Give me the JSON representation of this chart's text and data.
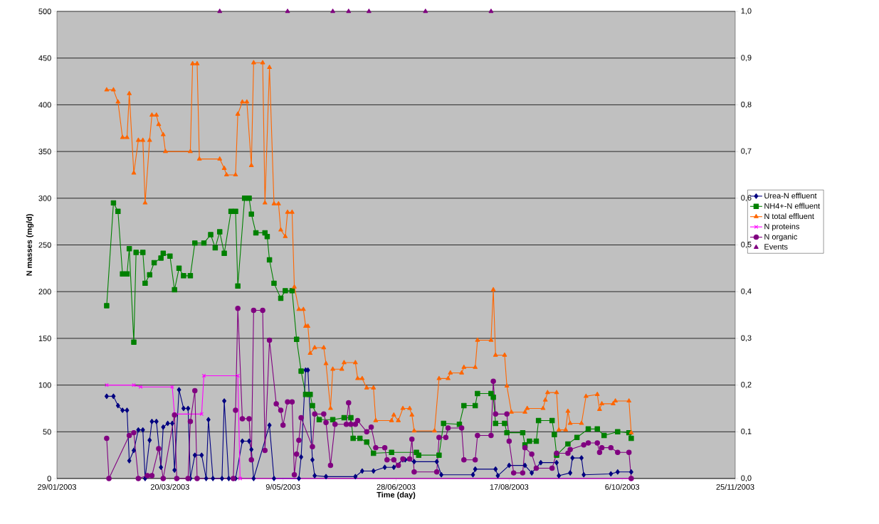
{
  "chart_data": {
    "type": "line",
    "xlabel": "Time (day)",
    "ylabel": "N masses (mg/d)",
    "xlim": [
      "2003-01-29",
      "2003-11-25"
    ],
    "xticks": [
      {
        "value": "2003-01-29",
        "label": "29/01/2003"
      },
      {
        "value": "2003-03-20",
        "label": "20/03/2003"
      },
      {
        "value": "2003-05-09",
        "label": "9/05/2003"
      },
      {
        "value": "2003-06-28",
        "label": "28/06/2003"
      },
      {
        "value": "2003-08-17",
        "label": "17/08/2003"
      },
      {
        "value": "2003-10-06",
        "label": "6/10/2003"
      },
      {
        "value": "2003-11-25",
        "label": "25/11/2003"
      }
    ],
    "ylim": [
      0,
      500
    ],
    "yticks": [
      0,
      50,
      100,
      150,
      200,
      250,
      300,
      350,
      400,
      450,
      500
    ],
    "y2lim": [
      0,
      1
    ],
    "y2ticks": [
      {
        "value": 0,
        "label": "0,0"
      },
      {
        "value": 0.1,
        "label": "0,1"
      },
      {
        "value": 0.2,
        "label": "0,2"
      },
      {
        "value": 0.3,
        "label": "0,3"
      },
      {
        "value": 0.4,
        "label": "0,4"
      },
      {
        "value": 0.5,
        "label": "0,5"
      },
      {
        "value": 0.6,
        "label": "0,6"
      },
      {
        "value": 0.7,
        "label": "0,7"
      },
      {
        "value": 0.8,
        "label": "0,8"
      },
      {
        "value": 0.9,
        "label": "0,9"
      },
      {
        "value": 1,
        "label": "1,0"
      }
    ],
    "grid": "y",
    "legend": "right",
    "line_style": "solid",
    "series": [
      {
        "name": "Urea-N effluent",
        "color": "#000080",
        "marker": "diamond",
        "x": [
          "2003-02-20",
          "2003-02-23",
          "2003-02-25",
          "2003-02-27",
          "2003-03-01",
          "2003-03-02",
          "2003-03-04",
          "2003-03-06",
          "2003-03-08",
          "2003-03-09",
          "2003-03-11",
          "2003-03-12",
          "2003-03-14",
          "2003-03-16",
          "2003-03-17",
          "2003-03-19",
          "2003-03-21",
          "2003-03-22",
          "2003-03-24",
          "2003-03-26",
          "2003-03-28",
          "2003-03-29",
          "2003-03-31",
          "2003-04-03",
          "2003-04-05",
          "2003-04-06",
          "2003-04-08",
          "2003-04-12",
          "2003-04-13",
          "2003-04-15",
          "2003-04-18",
          "2003-04-21",
          "2003-04-24",
          "2003-04-25",
          "2003-04-26",
          "2003-05-01",
          "2003-05-03",
          "2003-05-05",
          "2003-05-16",
          "2003-05-17",
          "2003-05-19",
          "2003-05-20",
          "2003-05-22",
          "2003-05-23",
          "2003-05-28",
          "2003-06-10",
          "2003-06-13",
          "2003-06-18",
          "2003-06-23",
          "2003-06-27",
          "2003-07-01",
          "2003-07-02",
          "2003-07-06",
          "2003-07-16",
          "2003-07-18",
          "2003-08-01",
          "2003-08-02",
          "2003-08-11",
          "2003-08-12",
          "2003-08-17",
          "2003-08-24",
          "2003-08-27",
          "2003-08-31",
          "2003-09-07",
          "2003-09-08",
          "2003-09-13",
          "2003-09-14",
          "2003-09-18",
          "2003-09-19",
          "2003-10-01",
          "2003-10-04",
          "2003-10-10"
        ],
        "values": [
          88,
          88,
          78,
          73,
          73,
          19,
          30,
          52,
          52,
          0,
          41,
          61,
          61,
          12,
          55,
          59,
          59,
          9,
          95,
          75,
          75,
          0,
          25,
          25,
          0,
          63,
          0,
          0,
          83,
          0,
          0,
          40,
          40,
          31,
          0,
          null,
          57,
          0,
          0,
          23,
          116,
          116,
          20,
          3,
          2,
          2,
          8,
          8,
          12,
          12,
          20,
          20,
          18,
          18,
          4,
          4,
          10,
          10,
          3,
          14,
          14,
          6,
          17,
          17,
          3,
          6,
          22,
          22,
          4,
          5,
          7,
          7
        ]
      },
      {
        "name": "NH4+-N effluent",
        "color": "#008000",
        "marker": "square",
        "x": [
          "2003-02-20",
          "2003-02-23",
          "2003-02-25",
          "2003-02-27",
          "2003-03-01",
          "2003-03-02",
          "2003-03-04",
          "2003-03-05",
          "2003-03-08",
          "2003-03-09",
          "2003-03-11",
          "2003-03-13",
          "2003-03-16",
          "2003-03-17",
          "2003-03-20",
          "2003-03-22",
          "2003-03-24",
          "2003-03-26",
          "2003-03-29",
          "2003-03-31",
          "2003-04-04",
          "2003-04-07",
          "2003-04-09",
          "2003-04-11",
          "2003-04-13",
          "2003-04-16",
          "2003-04-18",
          "2003-04-19",
          "2003-04-22",
          "2003-04-24",
          "2003-04-25",
          "2003-04-27",
          "2003-05-01",
          "2003-05-02",
          "2003-05-03",
          "2003-05-05",
          "2003-05-08",
          "2003-05-10",
          "2003-05-13",
          "2003-05-15",
          "2003-05-17",
          "2003-05-19",
          "2003-05-21",
          "2003-05-22",
          "2003-05-25",
          "2003-05-31",
          "2003-06-05",
          "2003-06-08",
          "2003-06-09",
          "2003-06-12",
          "2003-06-15",
          "2003-06-18",
          "2003-06-26",
          "2003-07-07",
          "2003-07-08",
          "2003-07-17",
          "2003-07-19",
          "2003-07-26",
          "2003-07-28",
          "2003-08-02",
          "2003-08-03",
          "2003-08-09",
          "2003-08-10",
          "2003-08-11",
          "2003-08-15",
          "2003-08-16",
          "2003-08-23",
          "2003-08-24",
          "2003-08-26",
          "2003-08-29",
          "2003-08-30",
          "2003-09-05",
          "2003-09-06",
          "2003-09-07",
          "2003-09-12",
          "2003-09-16",
          "2003-09-21",
          "2003-09-25",
          "2003-09-28",
          "2003-10-04",
          "2003-10-09",
          "2003-10-10"
        ],
        "values": [
          185,
          295,
          286,
          219,
          219,
          246,
          146,
          242,
          242,
          209,
          218,
          231,
          236,
          241,
          238,
          202,
          225,
          217,
          217,
          252,
          252,
          261,
          247,
          264,
          241,
          286,
          286,
          206,
          300,
          300,
          283,
          263,
          263,
          259,
          234,
          209,
          193,
          201,
          201,
          149,
          115,
          90,
          90,
          78,
          63,
          63,
          65,
          65,
          43,
          43,
          39,
          27,
          28,
          28,
          25,
          25,
          59,
          58,
          78,
          78,
          91,
          91,
          87,
          59,
          59,
          49,
          49,
          36,
          40,
          40,
          62,
          62,
          47,
          25,
          37,
          44,
          53,
          53,
          46,
          50,
          49,
          43
        ]
      },
      {
        "name": "N total effluent",
        "color": "#ff6600",
        "marker": "triangle",
        "x": [
          "2003-02-20",
          "2003-02-23",
          "2003-02-25",
          "2003-02-27",
          "2003-03-01",
          "2003-03-02",
          "2003-03-04",
          "2003-03-06",
          "2003-03-08",
          "2003-03-09",
          "2003-03-11",
          "2003-03-12",
          "2003-03-14",
          "2003-03-15",
          "2003-03-17",
          "2003-03-18",
          "2003-03-29",
          "2003-03-30",
          "2003-04-01",
          "2003-04-02",
          "2003-04-11",
          "2003-04-13",
          "2003-04-14",
          "2003-04-18",
          "2003-04-19",
          "2003-04-21",
          "2003-04-23",
          "2003-04-25",
          "2003-04-26",
          "2003-04-30",
          "2003-05-01",
          "2003-05-03",
          "2003-05-05",
          "2003-05-07",
          "2003-05-08",
          "2003-05-10",
          "2003-05-11",
          "2003-05-13",
          "2003-05-14",
          "2003-05-16",
          "2003-05-18",
          "2003-05-19",
          "2003-05-20",
          "2003-05-21",
          "2003-05-23",
          "2003-05-27",
          "2003-05-28",
          "2003-05-30",
          "2003-05-31",
          "2003-06-04",
          "2003-06-05",
          "2003-06-10",
          "2003-06-11",
          "2003-06-13",
          "2003-06-15",
          "2003-06-18",
          "2003-06-19",
          "2003-06-26",
          "2003-06-27",
          "2003-06-29",
          "2003-07-01",
          "2003-07-04",
          "2003-07-05",
          "2003-07-06",
          "2003-07-15",
          "2003-07-17",
          "2003-07-21",
          "2003-07-22",
          "2003-07-27",
          "2003-07-28",
          "2003-08-02",
          "2003-08-03",
          "2003-08-09",
          "2003-08-10",
          "2003-08-11",
          "2003-08-15",
          "2003-08-16",
          "2003-08-18",
          "2003-08-24",
          "2003-08-25",
          "2003-09-01",
          "2003-09-02",
          "2003-09-03",
          "2003-09-07",
          "2003-09-08",
          "2003-09-11",
          "2003-09-12",
          "2003-09-13",
          "2003-09-18",
          "2003-09-20",
          "2003-09-25",
          "2003-09-26",
          "2003-09-27",
          "2003-10-02",
          "2003-10-03",
          "2003-10-09",
          "2003-10-10"
        ],
        "values": [
          416,
          416,
          403,
          365,
          365,
          412,
          327,
          362,
          362,
          295,
          362,
          389,
          389,
          379,
          368,
          350,
          350,
          444,
          444,
          342,
          342,
          332,
          325,
          325,
          390,
          403,
          403,
          335,
          445,
          445,
          295,
          440,
          294,
          294,
          266,
          259,
          285,
          285,
          205,
          181,
          181,
          163,
          163,
          134,
          140,
          140,
          123,
          75,
          117,
          117,
          124,
          124,
          107,
          107,
          97,
          97,
          62,
          62,
          68,
          62,
          75,
          75,
          68,
          51,
          51,
          107,
          107,
          113,
          113,
          119,
          119,
          148,
          148,
          202,
          132,
          132,
          99,
          71,
          71,
          75,
          75,
          84,
          92,
          92,
          52,
          52,
          72,
          59,
          59,
          88,
          90,
          74,
          80,
          80,
          83,
          83,
          49
        ]
      },
      {
        "name": "N proteins",
        "color": "#ff00ff",
        "marker": "cross",
        "x": [
          "2003-02-20",
          "2003-03-04",
          "2003-03-07",
          "2003-03-21",
          "2003-03-22",
          "2003-04-03",
          "2003-04-04",
          "2003-04-19",
          "2003-04-20",
          "2003-10-10"
        ],
        "values": [
          100,
          100,
          98,
          98,
          69,
          69,
          110,
          110,
          0,
          0
        ]
      },
      {
        "name": "N organic",
        "color": "#800080",
        "marker": "circle",
        "x": [
          "2003-02-20",
          "2003-02-21",
          "2003-03-02",
          "2003-03-04",
          "2003-03-06",
          "2003-03-10",
          "2003-03-12",
          "2003-03-15",
          "2003-03-17",
          "2003-03-22",
          "2003-03-23",
          "2003-03-28",
          "2003-03-29",
          "2003-03-31",
          "2003-04-01",
          "2003-04-17",
          "2003-04-18",
          "2003-04-19",
          "2003-04-21",
          "2003-04-24",
          "2003-04-25",
          "2003-04-26",
          "2003-04-30",
          "2003-05-01",
          "2003-05-03",
          "2003-05-06",
          "2003-05-08",
          "2003-05-09",
          "2003-05-11",
          "2003-05-13",
          "2003-05-14",
          "2003-05-15",
          "2003-05-16",
          "2003-05-17",
          "2003-05-22",
          "2003-05-23",
          "2003-05-27",
          "2003-05-28",
          "2003-05-30",
          "2003-06-01",
          "2003-06-06",
          "2003-06-07",
          "2003-06-08",
          "2003-06-10",
          "2003-06-11",
          "2003-06-15",
          "2003-06-17",
          "2003-06-19",
          "2003-06-23",
          "2003-06-24",
          "2003-06-27",
          "2003-06-29",
          "2003-07-01",
          "2003-07-04",
          "2003-07-05",
          "2003-07-06",
          "2003-07-16",
          "2003-07-17",
          "2003-07-20",
          "2003-07-21",
          "2003-07-27",
          "2003-07-28",
          "2003-08-02",
          "2003-08-03",
          "2003-08-09",
          "2003-08-10",
          "2003-08-11",
          "2003-08-16",
          "2003-08-17",
          "2003-08-19",
          "2003-08-23",
          "2003-08-24",
          "2003-08-27",
          "2003-08-29",
          "2003-09-05",
          "2003-09-07",
          "2003-09-12",
          "2003-09-13",
          "2003-09-19",
          "2003-09-21",
          "2003-09-25",
          "2003-09-26",
          "2003-09-27",
          "2003-10-01",
          "2003-10-04",
          "2003-10-09",
          "2003-10-10"
        ],
        "values": [
          43,
          0,
          46,
          49,
          0,
          3,
          3,
          32,
          0,
          68,
          0,
          0,
          61,
          94,
          0,
          0,
          73,
          182,
          64,
          64,
          20,
          180,
          180,
          30,
          148,
          80,
          73,
          57,
          82,
          82,
          4,
          26,
          41,
          65,
          34,
          69,
          69,
          60,
          14,
          58,
          58,
          81,
          58,
          58,
          62,
          50,
          55,
          33,
          33,
          20,
          20,
          14,
          21,
          21,
          42,
          7,
          7,
          44,
          44,
          54,
          54,
          20,
          20,
          46,
          46,
          104,
          69,
          69,
          40,
          6,
          6,
          33,
          26,
          11,
          11,
          27,
          27,
          31,
          36,
          38,
          38,
          28,
          33,
          33,
          28,
          28,
          0
        ]
      },
      {
        "name": "Events",
        "color": "#800080",
        "type": "scatter",
        "axis": "y2",
        "marker": "triangle",
        "x": [
          "2003-04-11",
          "2003-05-11",
          "2003-05-31",
          "2003-06-07",
          "2003-06-16",
          "2003-07-11",
          "2003-08-09"
        ],
        "values": [
          1,
          1,
          1,
          1,
          1,
          1,
          1
        ]
      }
    ]
  }
}
